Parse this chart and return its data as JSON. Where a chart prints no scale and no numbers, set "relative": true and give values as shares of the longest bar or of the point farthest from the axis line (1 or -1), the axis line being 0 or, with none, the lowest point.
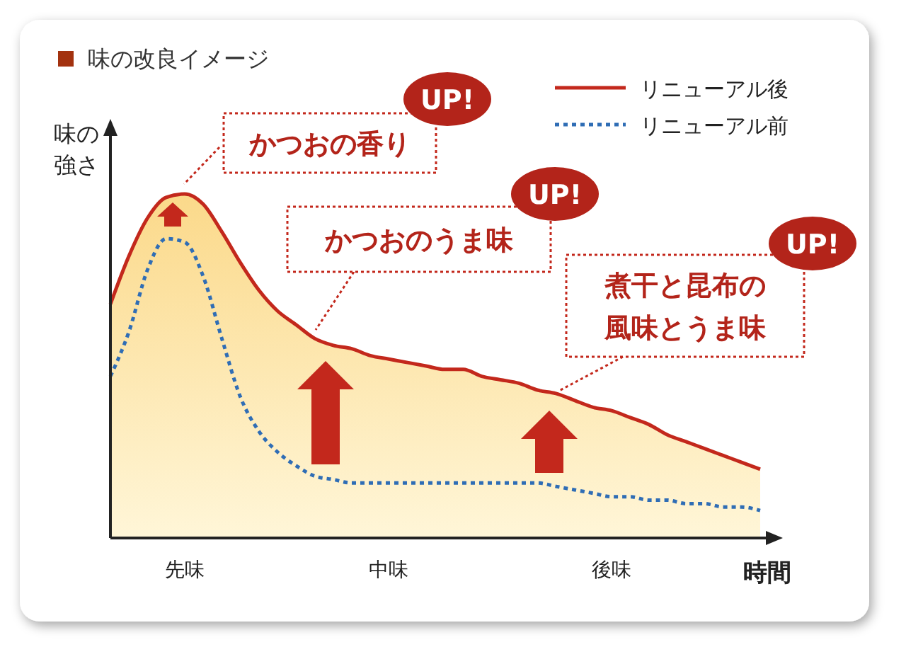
{
  "chart_data": {
    "type": "area",
    "title": "味の改良イメージ",
    "xlabel": "時間",
    "ylabel": "味の強さ",
    "relative": true,
    "legend": "top right",
    "categories": [
      null,
      null,
      null,
      null,
      "先味",
      null,
      null,
      null,
      null,
      null,
      null,
      null,
      null,
      null,
      null,
      "中味",
      null,
      null,
      null,
      null,
      null,
      null,
      null,
      null,
      null,
      null,
      null,
      "後味",
      null,
      null,
      null,
      null,
      null,
      null,
      null,
      null
    ],
    "series": [
      {
        "name": "リニューアル後",
        "color": "#c3281c",
        "line_style": "solid",
        "values": [
          0.68,
          0.82,
          0.93,
          0.99,
          1.0,
          0.97,
          0.89,
          0.8,
          0.72,
          0.66,
          0.62,
          0.58,
          0.56,
          0.55,
          0.53,
          0.52,
          0.51,
          0.5,
          0.49,
          0.49,
          0.47,
          0.46,
          0.45,
          0.43,
          0.42,
          0.4,
          0.38,
          0.37,
          0.35,
          0.33,
          0.3,
          0.28,
          0.26,
          0.24,
          0.22,
          0.2
        ]
      },
      {
        "name": "リニューアル前",
        "type": "line",
        "color": "#2f6db5",
        "line_style": "dotted",
        "values": [
          0.47,
          0.6,
          0.78,
          0.87,
          0.86,
          0.76,
          0.58,
          0.41,
          0.31,
          0.25,
          0.21,
          0.18,
          0.17,
          0.16,
          0.16,
          0.16,
          0.16,
          0.16,
          0.16,
          0.16,
          0.16,
          0.16,
          0.16,
          0.16,
          0.15,
          0.14,
          0.13,
          0.12,
          0.12,
          0.11,
          0.11,
          0.1,
          0.1,
          0.09,
          0.09,
          0.08
        ]
      }
    ],
    "annotations": [
      "かつおの香り",
      "UP!",
      "かつおのうま味",
      "UP!",
      "煮干と昆布の風味とうま味",
      "UP!"
    ]
  }
}
